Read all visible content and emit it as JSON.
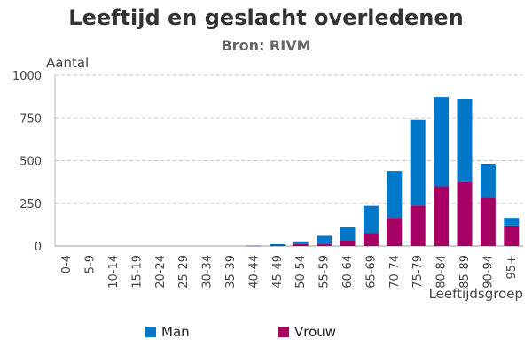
{
  "chart_data": {
    "type": "bar",
    "stacked": true,
    "title": "Leeftijd en geslacht overledenen",
    "subtitle": "Bron: RIVM",
    "ylabel": "Aantal",
    "xlabel": "Leeftijdsgroep",
    "ylim": [
      0,
      1000
    ],
    "yticks": [
      "0",
      "250",
      "500",
      "750",
      "1000"
    ],
    "grid": true,
    "legend_position": "bottom",
    "categories": [
      "0-4",
      "5-9",
      "10-14",
      "15-19",
      "20-24",
      "25-29",
      "30-34",
      "35-39",
      "40-44",
      "45-49",
      "50-54",
      "55-59",
      "60-64",
      "65-69",
      "70-74",
      "75-79",
      "80-84",
      "85-89",
      "90-94",
      "95+"
    ],
    "series": [
      {
        "name": "Vrouw",
        "color": "#A50064",
        "values": [
          0,
          0,
          0,
          0,
          0,
          0,
          0,
          0,
          1,
          5,
          12,
          12,
          35,
          75,
          165,
          237,
          350,
          375,
          282,
          120
        ]
      },
      {
        "name": "Man",
        "color": "#0077C8",
        "values": [
          0,
          0,
          0,
          0,
          0,
          0,
          0,
          0,
          1,
          6,
          15,
          48,
          75,
          160,
          275,
          500,
          520,
          485,
          200,
          45
        ]
      }
    ]
  },
  "legend": {
    "items": [
      {
        "label": "Man",
        "color": "#0077C8"
      },
      {
        "label": "Vrouw",
        "color": "#A50064"
      }
    ]
  }
}
